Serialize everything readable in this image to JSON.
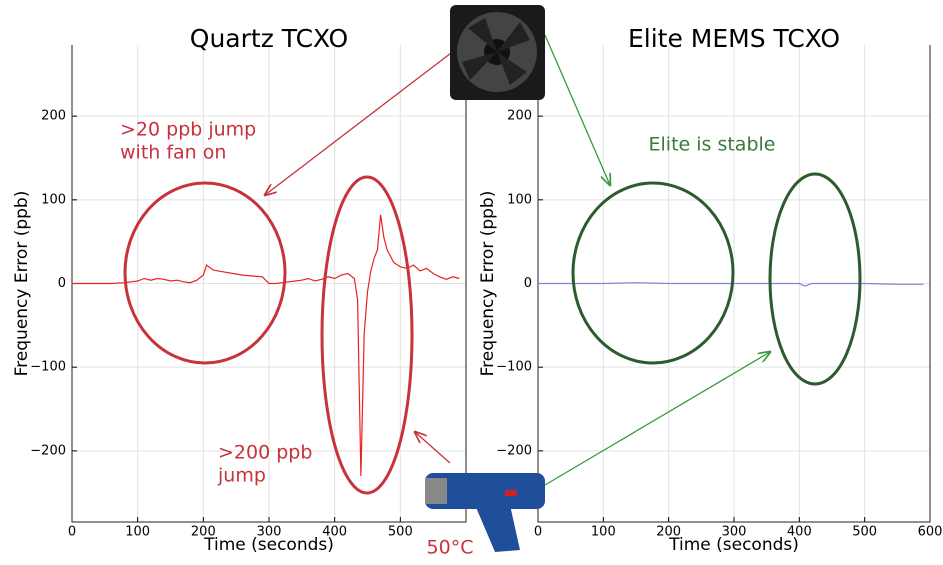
{
  "chart_data": [
    {
      "type": "line",
      "title": "Quartz TCXO",
      "xlabel": "Time (seconds)",
      "ylabel": "Frequency Error (ppb)",
      "x": [
        0,
        20,
        40,
        60,
        80,
        90,
        100,
        110,
        120,
        130,
        140,
        150,
        160,
        170,
        180,
        190,
        200,
        205,
        215,
        230,
        245,
        260,
        275,
        290,
        300,
        310,
        320,
        330,
        340,
        350,
        360,
        370,
        380,
        390,
        400,
        410,
        420,
        430,
        435,
        440,
        445,
        450,
        455,
        460,
        465,
        470,
        475,
        480,
        490,
        500,
        510,
        520,
        530,
        540,
        550,
        560,
        570,
        580,
        590
      ],
      "series": [
        {
          "name": "Quartz TCXO",
          "color": "#e8231f",
          "values": [
            0,
            0,
            0,
            0,
            1,
            2,
            3,
            6,
            4,
            6,
            5,
            3,
            4,
            2,
            1,
            4,
            10,
            22,
            16,
            14,
            12,
            10,
            9,
            8,
            0,
            0,
            1,
            2,
            3,
            4,
            6,
            3,
            5,
            8,
            6,
            10,
            12,
            6,
            -20,
            -230,
            -60,
            -10,
            15,
            30,
            40,
            82,
            55,
            40,
            25,
            20,
            18,
            22,
            15,
            18,
            12,
            8,
            5,
            8,
            6
          ]
        }
      ],
      "xlim": [
        0,
        600
      ],
      "ylim": [
        -285,
        285
      ],
      "xticks": [
        0,
        100,
        200,
        300,
        400,
        500
      ],
      "yticks": [
        {
          "value": -200,
          "label": "−200"
        },
        {
          "value": -100,
          "label": "−100"
        },
        0,
        100,
        200
      ],
      "grid": true,
      "annotations": [
        ">20 ppb jump",
        "with fan on",
        ">200 ppb",
        "jump",
        "50°C"
      ],
      "annotation_color": "#c8323c"
    },
    {
      "type": "line",
      "title": "Elite MEMS TCXO",
      "xlabel": "Time (seconds)",
      "ylabel": "Frequency Error (ppb)",
      "x": [
        0,
        50,
        100,
        150,
        200,
        250,
        300,
        350,
        400,
        405,
        410,
        415,
        420,
        450,
        500,
        550,
        590
      ],
      "series": [
        {
          "name": "Elite MEMS TCXO",
          "color": "#7a85d6",
          "values": [
            0,
            0,
            0,
            1,
            0,
            0,
            0,
            0,
            0,
            -2,
            -3,
            -1,
            0,
            0,
            0,
            -1,
            -1
          ]
        }
      ],
      "xlim": [
        0,
        600
      ],
      "ylim": [
        -285,
        285
      ],
      "xticks": [
        0,
        100,
        200,
        300,
        400,
        500,
        600
      ],
      "yticks": [
        {
          "value": -200,
          "label": "−200"
        },
        {
          "value": -100,
          "label": "−100"
        },
        0,
        100,
        200
      ],
      "grid": true,
      "annotations": [
        "Elite is stable"
      ],
      "annotation_color": "#3a7a3a"
    }
  ]
}
